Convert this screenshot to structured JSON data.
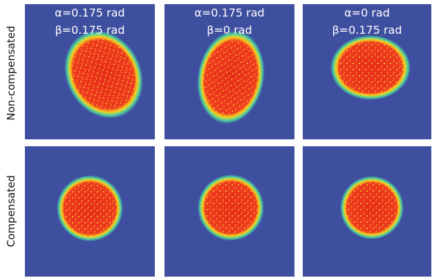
{
  "rows": [
    {
      "label": "Non-compensated",
      "panels": [
        {
          "lines": [
            "α=0.175 rad",
            "β=0.175 rad"
          ]
        },
        {
          "lines": [
            "α=0.175 rad",
            "β=0 rad"
          ]
        },
        {
          "lines": [
            "α=0 rad",
            "β=0.175 rad"
          ]
        }
      ]
    },
    {
      "label": "Compensated",
      "panels": [
        {},
        {},
        {}
      ]
    }
  ]
}
